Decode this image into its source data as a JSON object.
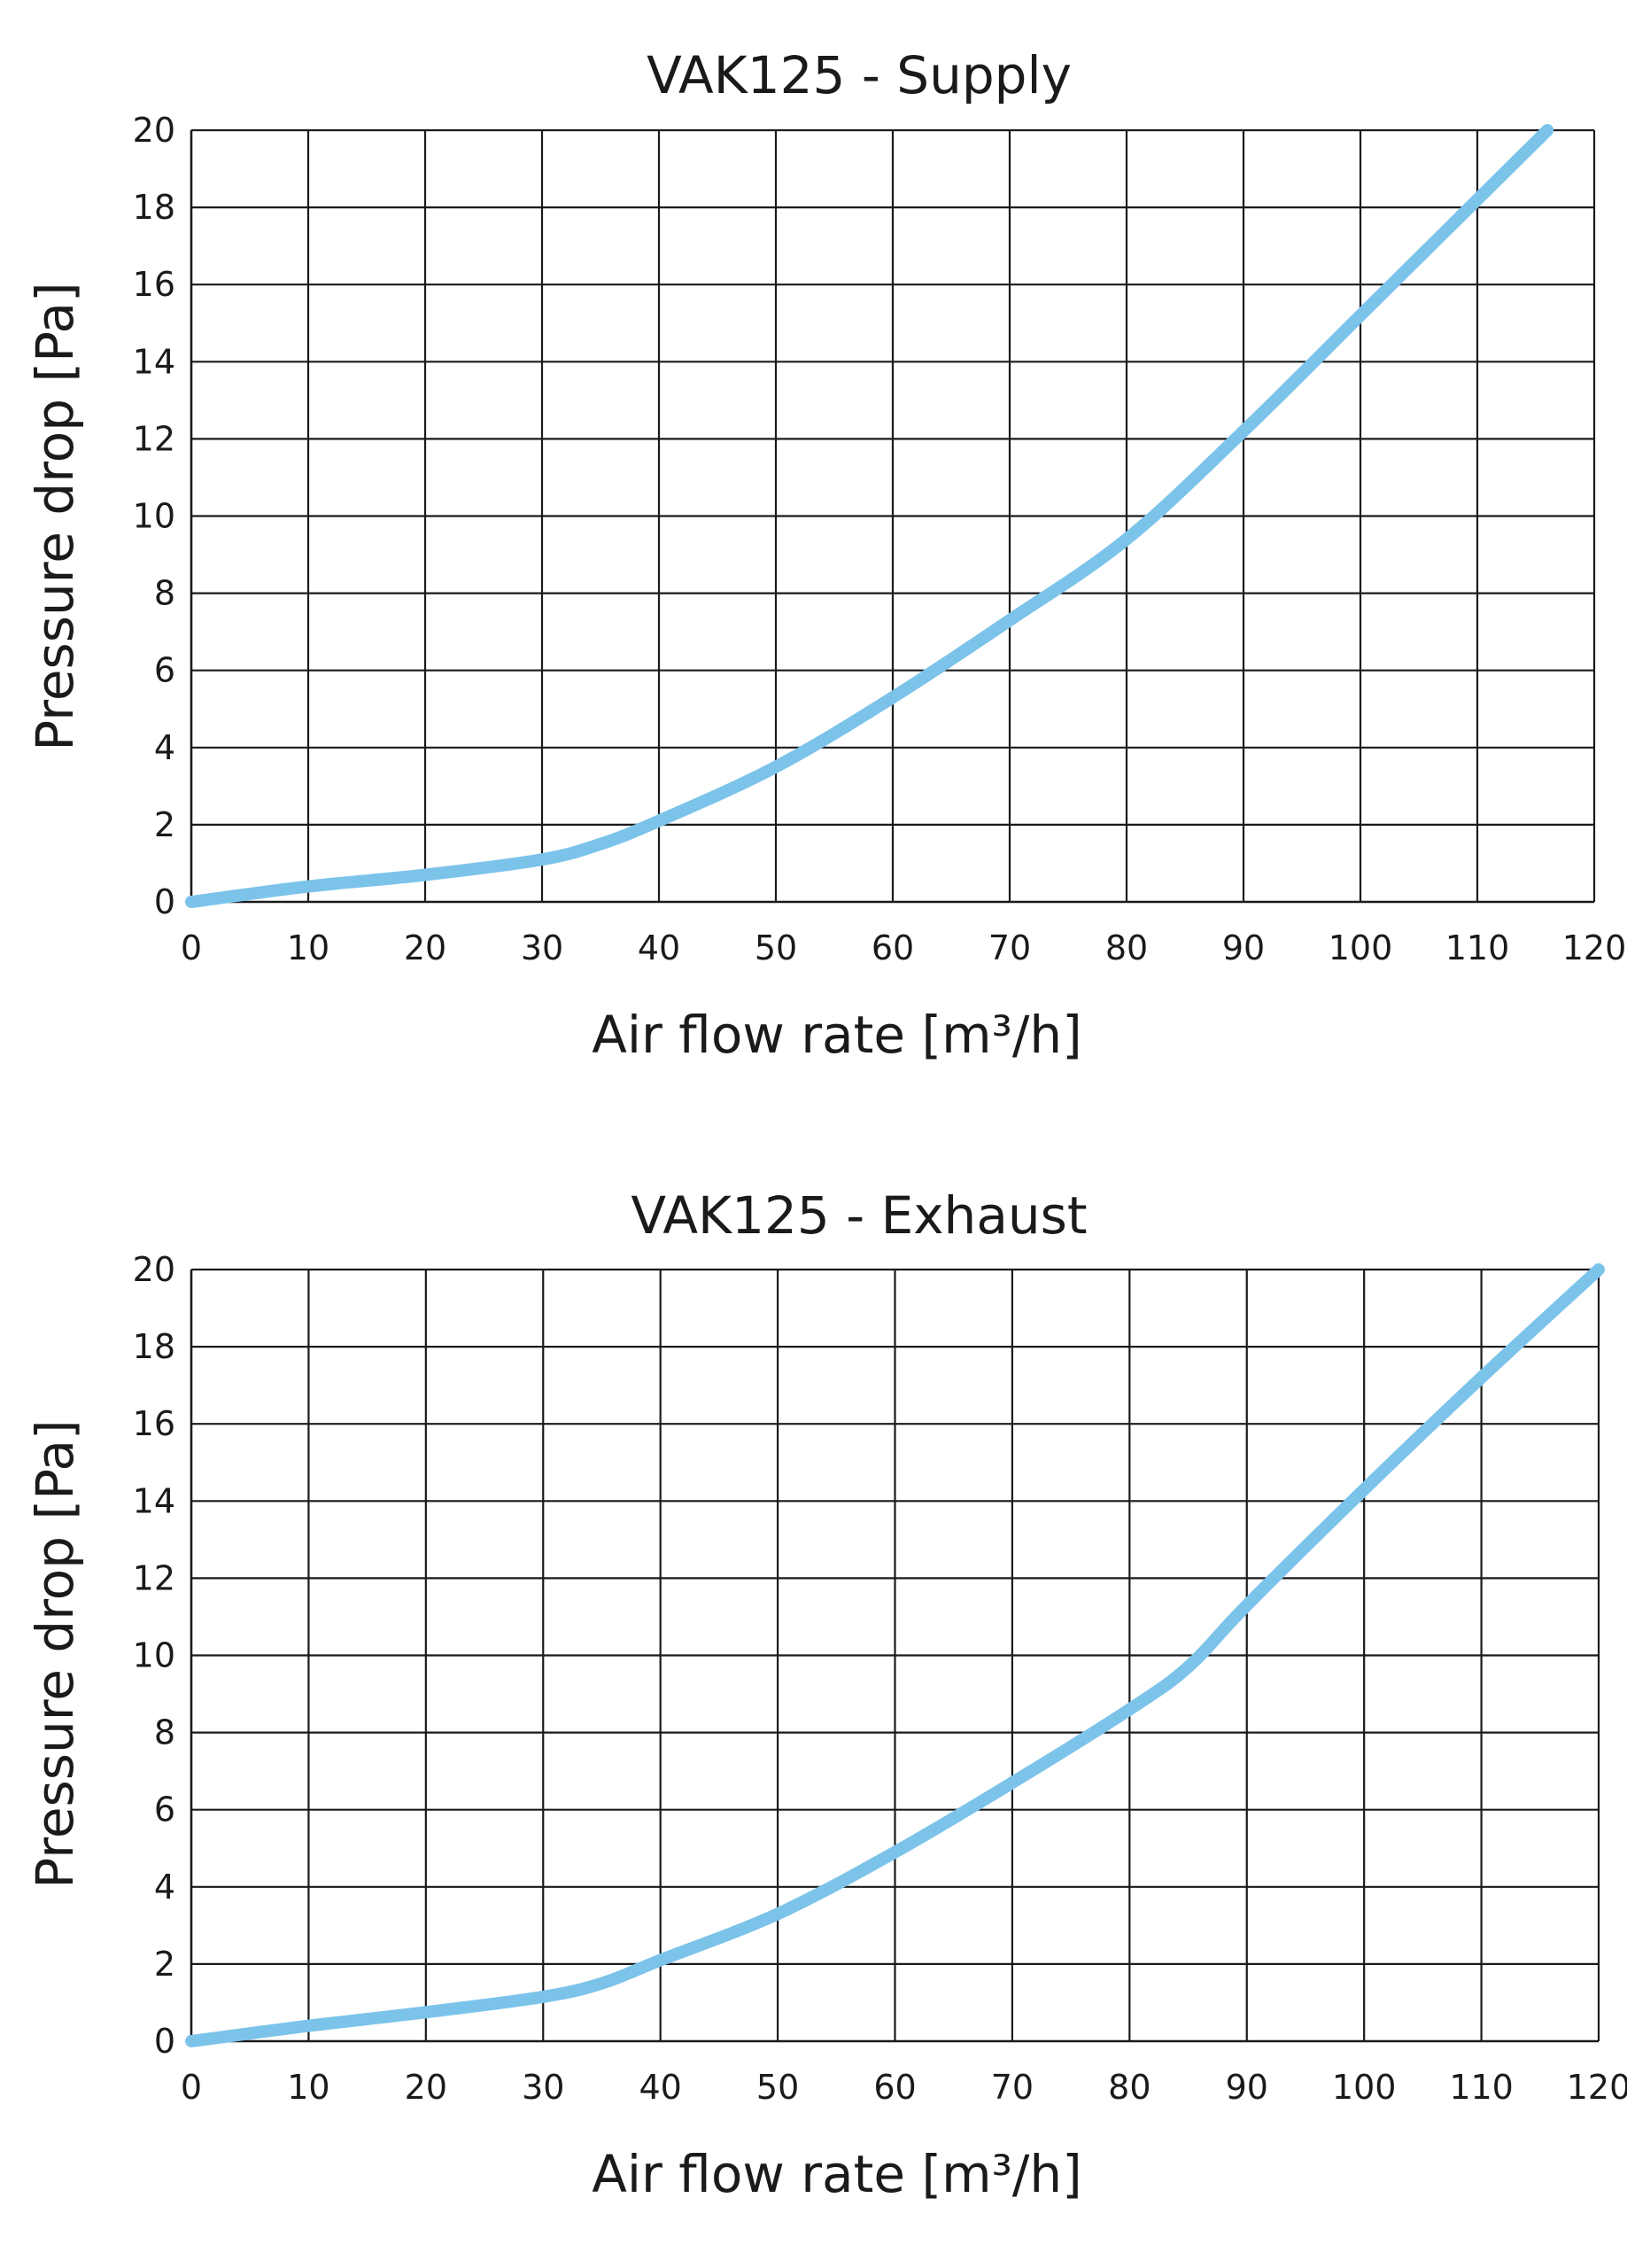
{
  "chart_data": [
    {
      "type": "line",
      "title": "VAK125 - Supply",
      "xlabel": "Air flow rate [m³/h]",
      "ylabel": "Pressure drop [Pa]",
      "xlim": [
        0,
        120
      ],
      "ylim": [
        0,
        20
      ],
      "xticks": [
        0,
        10,
        20,
        30,
        40,
        50,
        60,
        70,
        80,
        90,
        100,
        110,
        120
      ],
      "yticks": [
        0,
        2,
        4,
        6,
        8,
        10,
        12,
        14,
        16,
        18,
        20
      ],
      "grid": true,
      "legend": "none",
      "series": [
        {
          "color": "#7cc3ea",
          "x": [
            0,
            10,
            20,
            30,
            35,
            40,
            50,
            60,
            70,
            80,
            90,
            100,
            110,
            116
          ],
          "y": [
            0,
            0.4,
            0.7,
            1.1,
            1.5,
            2.1,
            3.5,
            5.3,
            7.3,
            9.4,
            12.2,
            15.2,
            18.2,
            20
          ]
        }
      ]
    },
    {
      "type": "line",
      "title": "VAK125 - Exhaust",
      "xlabel": "Air flow rate [m³/h]",
      "ylabel": "Pressure drop [Pa]",
      "xlim": [
        0,
        120
      ],
      "ylim": [
        0,
        20
      ],
      "xticks": [
        0,
        10,
        20,
        30,
        40,
        50,
        60,
        70,
        80,
        90,
        100,
        110,
        120
      ],
      "yticks": [
        0,
        2,
        4,
        6,
        8,
        10,
        12,
        14,
        16,
        18,
        20
      ],
      "grid": true,
      "legend": "none",
      "series": [
        {
          "color": "#7cc3ea",
          "x": [
            0,
            10,
            20,
            30,
            35,
            40,
            50,
            60,
            70,
            80,
            85,
            90,
            100,
            110,
            120
          ],
          "y": [
            0,
            0.4,
            0.75,
            1.15,
            1.5,
            2.1,
            3.3,
            4.9,
            6.7,
            8.6,
            9.7,
            11.3,
            14.3,
            17.2,
            20
          ]
        }
      ]
    }
  ]
}
